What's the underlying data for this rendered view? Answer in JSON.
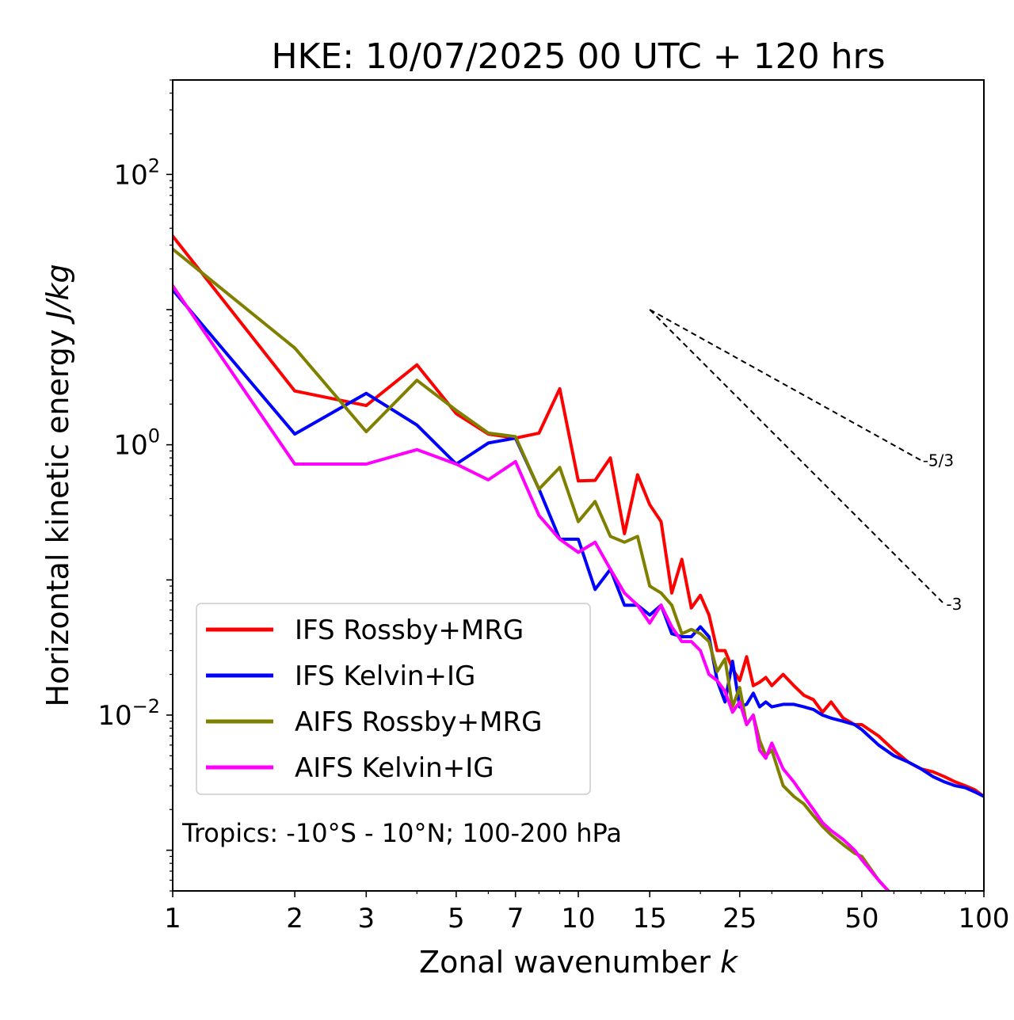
{
  "chart_data": {
    "type": "line",
    "title": "HKE: 10/07/2025 00 UTC + 120 hrs",
    "xlabel": "Zonal wavenumber",
    "xlabel_var": "k",
    "ylabel": "Horizontal kinetic energy",
    "ylabel_unit": "J/kg",
    "xscale": "log",
    "yscale": "log",
    "xlim": [
      1,
      100
    ],
    "ylim": [
      0.0005,
      500
    ],
    "x_ticks": [
      {
        "value": 1,
        "label": "1"
      },
      {
        "value": 2,
        "label": "2"
      },
      {
        "value": 3,
        "label": "3"
      },
      {
        "value": 5,
        "label": "5"
      },
      {
        "value": 7,
        "label": "7"
      },
      {
        "value": 10,
        "label": "10"
      },
      {
        "value": 15,
        "label": "15"
      },
      {
        "value": 25,
        "label": "25"
      },
      {
        "value": 50,
        "label": "50"
      },
      {
        "value": 100,
        "label": "100"
      }
    ],
    "y_ticks": [
      {
        "value": 100,
        "base": "10",
        "exp": "2"
      },
      {
        "value": 1,
        "base": "10",
        "exp": "0"
      },
      {
        "value": 0.01,
        "base": "10",
        "exp": "−2"
      }
    ],
    "legend_position": "lower-left",
    "annotation": "Tropics: -10°S - 10°N; 100-200 hPa",
    "reference_slopes": [
      {
        "label": "-5/3",
        "slope": -1.6667,
        "x_start": 15,
        "x_end": 70,
        "y_start": 10
      },
      {
        "label": "-3",
        "slope": -3,
        "x_start": 15,
        "x_end": 80,
        "y_start": 10
      }
    ],
    "series": [
      {
        "name": "IFS Rossby+MRG",
        "color": "#ff0000",
        "x": [
          1,
          2,
          3,
          4,
          5,
          6,
          7,
          8,
          9,
          10,
          11,
          12,
          13,
          14,
          15,
          16,
          17,
          18,
          19,
          20,
          21,
          22,
          23,
          24,
          25,
          26,
          27,
          28,
          29,
          30,
          32,
          34,
          36,
          38,
          40,
          42,
          45,
          48,
          50,
          55,
          60,
          65,
          70,
          75,
          80,
          85,
          90,
          95,
          100
        ],
        "y": [
          35,
          2.5,
          1.95,
          3.9,
          1.7,
          1.2,
          1.12,
          1.22,
          2.6,
          0.54,
          0.545,
          0.8,
          0.22,
          0.6,
          0.36,
          0.27,
          0.08,
          0.142,
          0.062,
          0.077,
          0.055,
          0.03,
          0.03,
          0.022,
          0.018,
          0.027,
          0.0165,
          0.0175,
          0.019,
          0.0165,
          0.02,
          0.0165,
          0.014,
          0.013,
          0.0105,
          0.0125,
          0.0095,
          0.0085,
          0.0085,
          0.007,
          0.0055,
          0.0045,
          0.004,
          0.0038,
          0.0035,
          0.0032,
          0.003,
          0.0028,
          0.0025
        ]
      },
      {
        "name": "IFS Kelvin+IG",
        "color": "#0000ff",
        "x": [
          1,
          2,
          3,
          4,
          5,
          6,
          7,
          8,
          9,
          10,
          11,
          12,
          13,
          14,
          15,
          16,
          17,
          18,
          19,
          20,
          21,
          22,
          23,
          24,
          25,
          26,
          27,
          28,
          29,
          30,
          32,
          34,
          36,
          38,
          40,
          42,
          45,
          48,
          50,
          55,
          60,
          65,
          70,
          75,
          80,
          85,
          90,
          95,
          100
        ],
        "y": [
          14,
          1.2,
          2.4,
          1.4,
          0.72,
          1.03,
          1.12,
          0.47,
          0.2,
          0.2,
          0.085,
          0.12,
          0.065,
          0.065,
          0.055,
          0.065,
          0.04,
          0.038,
          0.038,
          0.045,
          0.038,
          0.018,
          0.0125,
          0.025,
          0.0115,
          0.012,
          0.0145,
          0.0115,
          0.0125,
          0.0115,
          0.012,
          0.012,
          0.0115,
          0.011,
          0.01,
          0.0095,
          0.009,
          0.0085,
          0.0078,
          0.006,
          0.005,
          0.0045,
          0.004,
          0.0035,
          0.0032,
          0.003,
          0.0029,
          0.0027,
          0.0025
        ]
      },
      {
        "name": "AIFS Rossby+MRG",
        "color": "#808000",
        "x": [
          1,
          2,
          3,
          4,
          5,
          6,
          7,
          8,
          9,
          10,
          11,
          12,
          13,
          14,
          15,
          16,
          17,
          18,
          19,
          20,
          21,
          22,
          23,
          24,
          25,
          26,
          27,
          28,
          29,
          30,
          32,
          34,
          36,
          38,
          40,
          42,
          45,
          48,
          50,
          55,
          60
        ],
        "y": [
          28,
          5.2,
          1.25,
          3.0,
          1.8,
          1.22,
          1.15,
          0.47,
          0.68,
          0.27,
          0.38,
          0.21,
          0.19,
          0.21,
          0.09,
          0.08,
          0.065,
          0.04,
          0.043,
          0.04,
          0.035,
          0.021,
          0.026,
          0.0115,
          0.016,
          0.0085,
          0.01,
          0.0065,
          0.005,
          0.0055,
          0.003,
          0.0025,
          0.0022,
          0.0018,
          0.0015,
          0.0013,
          0.0011,
          0.00095,
          0.0009,
          0.0006,
          0.00045
        ]
      },
      {
        "name": "AIFS Kelvin+IG",
        "color": "#ff00ff",
        "x": [
          1,
          2,
          3,
          4,
          5,
          6,
          7,
          8,
          9,
          10,
          11,
          12,
          13,
          14,
          15,
          16,
          17,
          18,
          19,
          20,
          21,
          22,
          23,
          24,
          25,
          26,
          27,
          28,
          29,
          30,
          32,
          34,
          36,
          38,
          40,
          42,
          45,
          48,
          50,
          55,
          60
        ],
        "y": [
          15,
          0.72,
          0.72,
          0.92,
          0.72,
          0.55,
          0.75,
          0.3,
          0.2,
          0.16,
          0.19,
          0.12,
          0.08,
          0.065,
          0.048,
          0.065,
          0.045,
          0.035,
          0.035,
          0.03,
          0.02,
          0.018,
          0.015,
          0.0105,
          0.0125,
          0.0085,
          0.01,
          0.0055,
          0.0048,
          0.0062,
          0.004,
          0.0032,
          0.0025,
          0.002,
          0.0016,
          0.0014,
          0.0012,
          0.001,
          0.00085,
          0.0006,
          0.00045
        ]
      }
    ]
  }
}
